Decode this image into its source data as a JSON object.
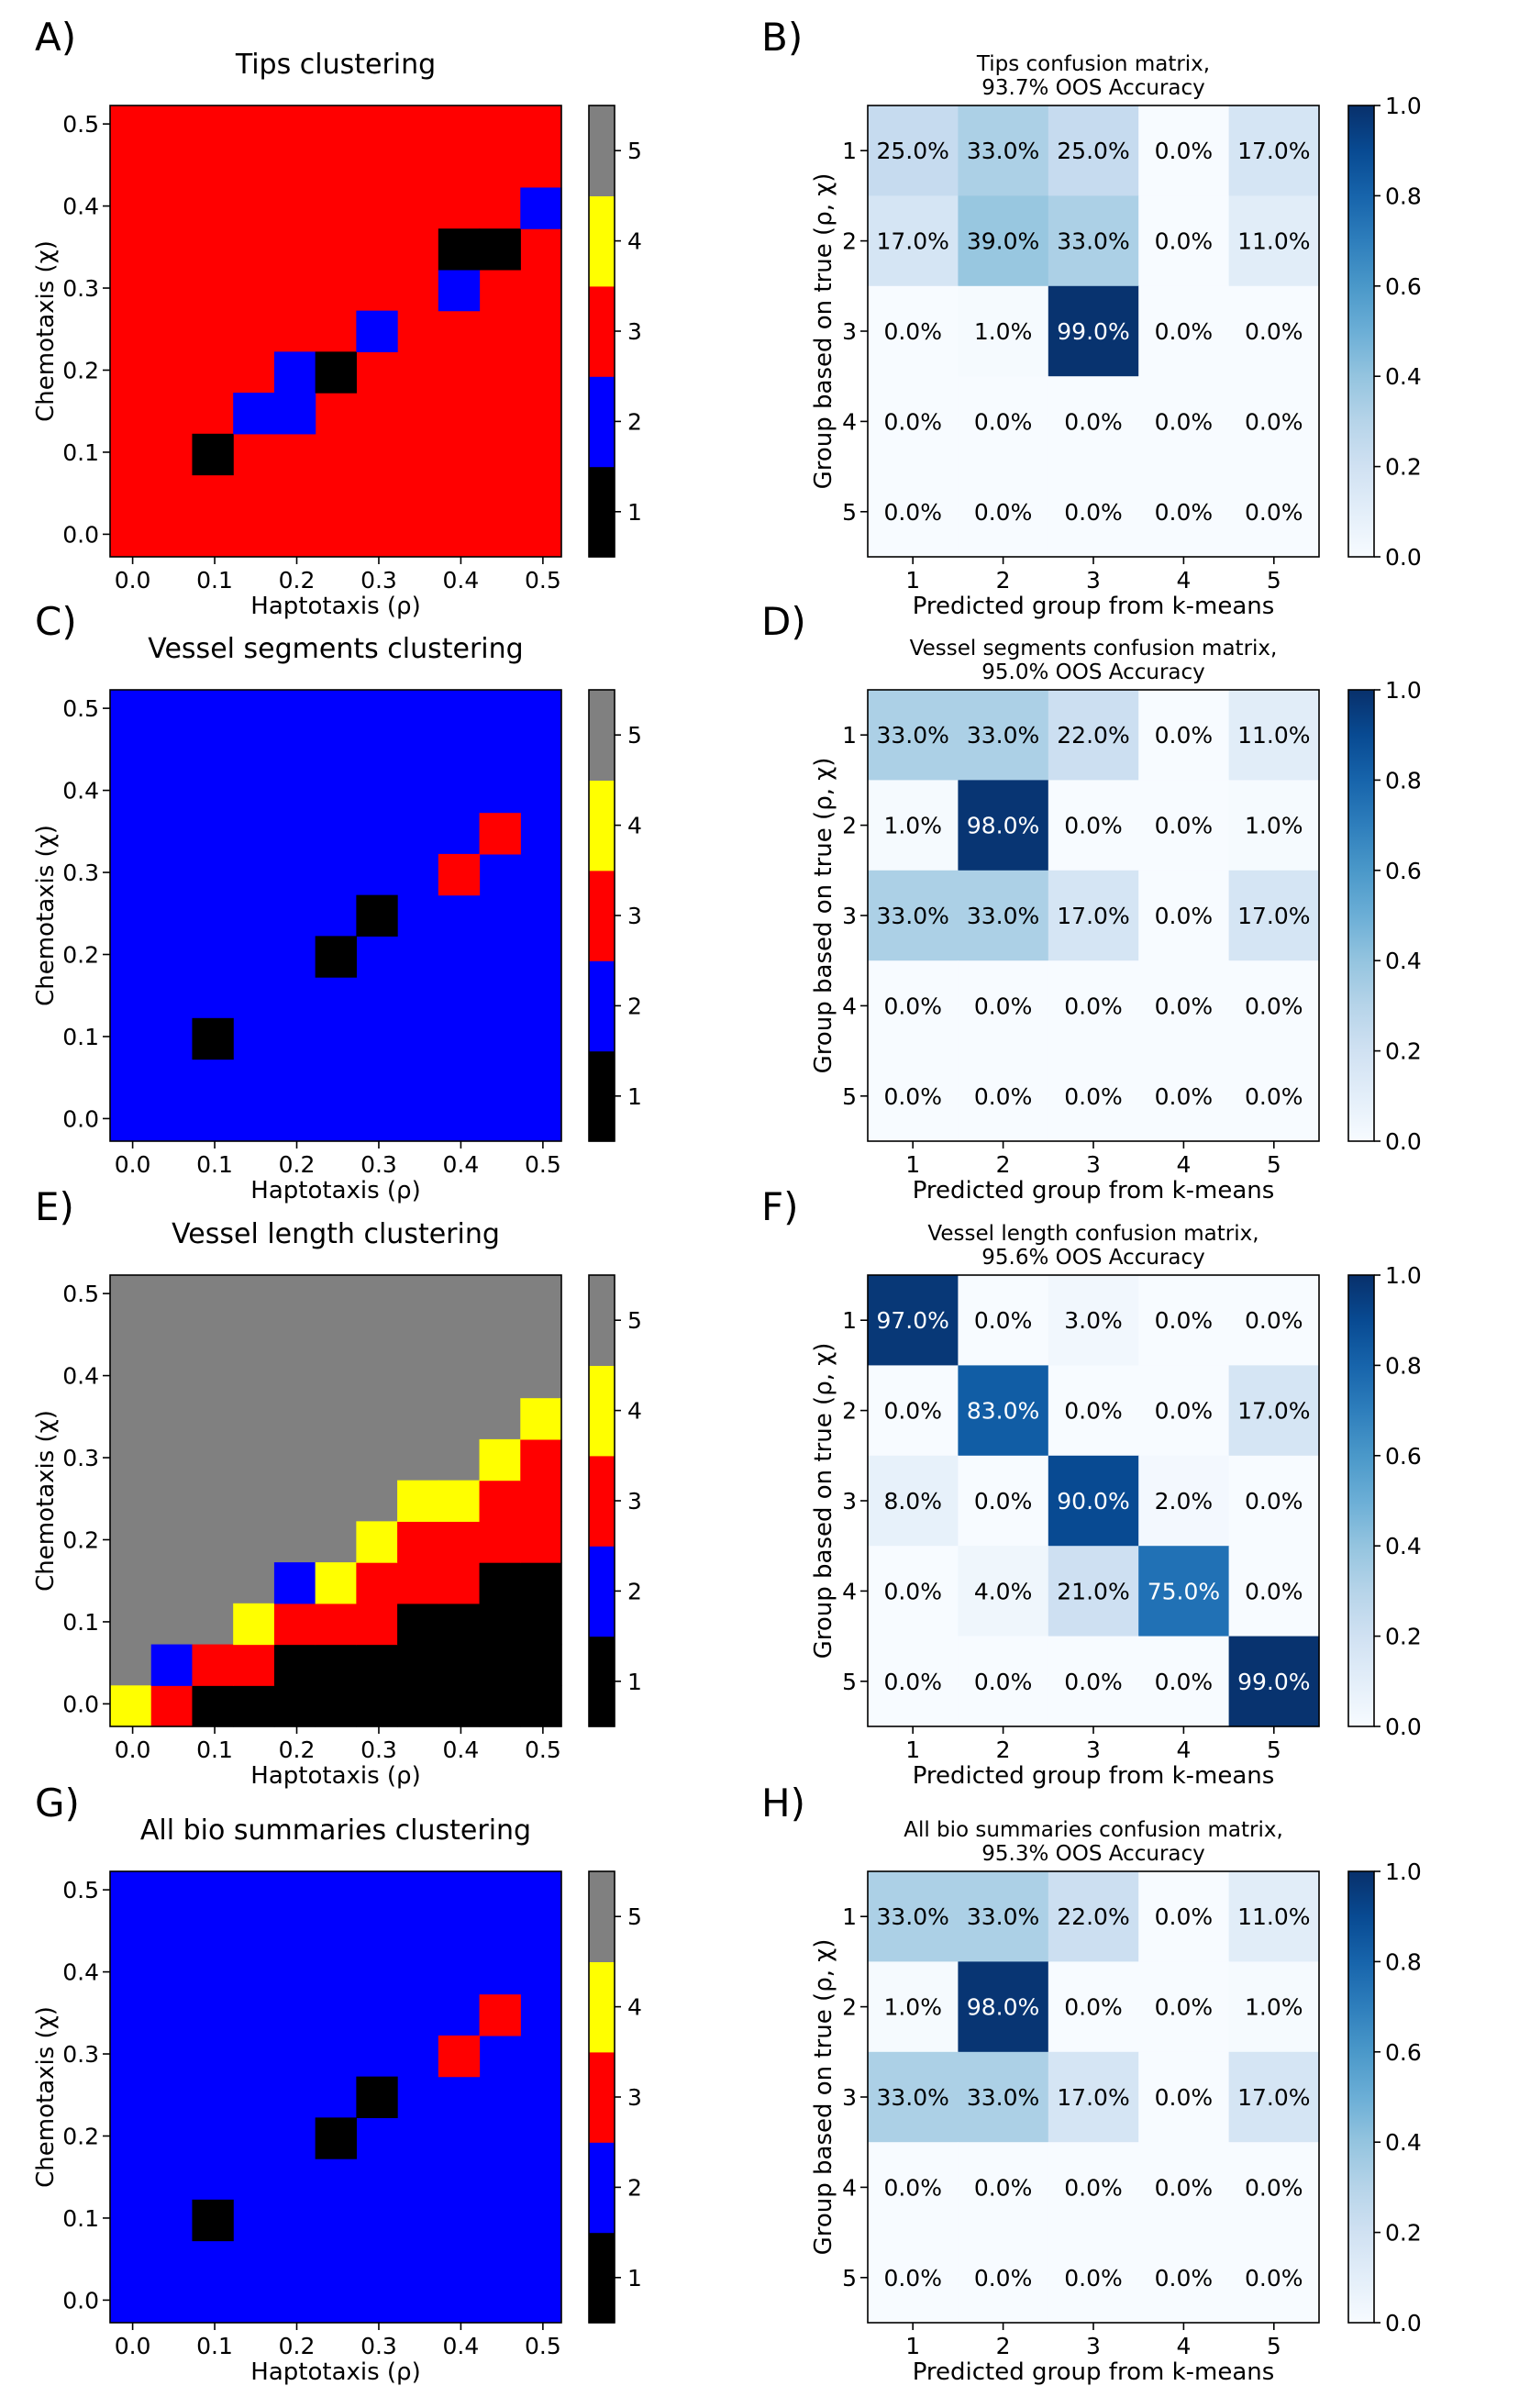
{
  "chart_data": [
    {
      "type": "heatmap",
      "panel": "A)",
      "title": "Tips clustering",
      "xlabel": "Haptotaxis (ρ)",
      "ylabel": "Chemotaxis (χ)",
      "xticks": [
        "0.0",
        "0.1",
        "0.2",
        "0.3",
        "0.4",
        "0.5"
      ],
      "yticks": [
        "0.0",
        "0.1",
        "0.2",
        "0.3",
        "0.4",
        "0.5"
      ],
      "xlim": [
        -0.0275,
        0.5225
      ],
      "ylim": [
        -0.0275,
        0.5225
      ],
      "grid_size": 11,
      "grid_step": 0.05,
      "background": 3,
      "cells": [
        [
          2,
          2,
          1
        ],
        [
          3,
          3,
          2
        ],
        [
          4,
          3,
          2
        ],
        [
          4,
          4,
          2
        ],
        [
          5,
          4,
          1
        ],
        [
          6,
          5,
          2
        ],
        [
          8,
          6,
          2
        ],
        [
          8,
          7,
          1
        ],
        [
          9,
          7,
          1
        ],
        [
          10,
          8,
          2
        ]
      ],
      "colorbar": {
        "ticks": [
          "1",
          "2",
          "3",
          "4",
          "5"
        ],
        "colors": [
          "#000000",
          "#0000ff",
          "#ff0000",
          "#ffff00",
          "#808080"
        ]
      }
    },
    {
      "type": "heatmap",
      "panel": "B)",
      "title": "Tips confusion matrix,",
      "subtitle": "93.7% OOS Accuracy",
      "xlabel": "Predicted group from k-means",
      "ylabel": "Group based on true (ρ, χ)",
      "categories": [
        "1",
        "2",
        "3",
        "4",
        "5"
      ],
      "values": [
        [
          0.25,
          0.33,
          0.25,
          0,
          0.17
        ],
        [
          0.17,
          0.39,
          0.33,
          0,
          0.11
        ],
        [
          0,
          0.01,
          0.99,
          0,
          0
        ],
        [
          0,
          0,
          0,
          0,
          0
        ],
        [
          0,
          0,
          0,
          0,
          0
        ]
      ],
      "labels": [
        [
          "25.0%",
          "33.0%",
          "25.0%",
          "0.0%",
          "17.0%"
        ],
        [
          "17.0%",
          "39.0%",
          "33.0%",
          "0.0%",
          "11.0%"
        ],
        [
          "0.0%",
          "1.0%",
          "99.0%",
          "0.0%",
          "0.0%"
        ],
        [
          "0.0%",
          "0.0%",
          "0.0%",
          "0.0%",
          "0.0%"
        ],
        [
          "0.0%",
          "0.0%",
          "0.0%",
          "0.0%",
          "0.0%"
        ]
      ],
      "colorbar": {
        "ticks": [
          "0.0",
          "0.2",
          "0.4",
          "0.6",
          "0.8",
          "1.0"
        ],
        "range": [
          0,
          1
        ],
        "cmap": "Blues"
      }
    },
    {
      "type": "heatmap",
      "panel": "C)",
      "title": "Vessel segments clustering",
      "xlabel": "Haptotaxis (ρ)",
      "ylabel": "Chemotaxis (χ)",
      "xticks": [
        "0.0",
        "0.1",
        "0.2",
        "0.3",
        "0.4",
        "0.5"
      ],
      "yticks": [
        "0.0",
        "0.1",
        "0.2",
        "0.3",
        "0.4",
        "0.5"
      ],
      "xlim": [
        -0.0275,
        0.5225
      ],
      "ylim": [
        -0.0275,
        0.5225
      ],
      "grid_size": 11,
      "grid_step": 0.05,
      "background": 2,
      "cells": [
        [
          2,
          2,
          1
        ],
        [
          5,
          4,
          1
        ],
        [
          6,
          5,
          1
        ],
        [
          8,
          6,
          3
        ],
        [
          9,
          7,
          3
        ]
      ],
      "colorbar": {
        "ticks": [
          "1",
          "2",
          "3",
          "4",
          "5"
        ],
        "colors": [
          "#000000",
          "#0000ff",
          "#ff0000",
          "#ffff00",
          "#808080"
        ]
      }
    },
    {
      "type": "heatmap",
      "panel": "D)",
      "title": "Vessel segments confusion matrix,",
      "subtitle": "95.0% OOS Accuracy",
      "xlabel": "Predicted group from k-means",
      "ylabel": "Group based on true (ρ, χ)",
      "categories": [
        "1",
        "2",
        "3",
        "4",
        "5"
      ],
      "values": [
        [
          0.33,
          0.33,
          0.22,
          0,
          0.11
        ],
        [
          0.01,
          0.98,
          0,
          0,
          0.01
        ],
        [
          0.33,
          0.33,
          0.17,
          0,
          0.17
        ],
        [
          0,
          0,
          0,
          0,
          0
        ],
        [
          0,
          0,
          0,
          0,
          0
        ]
      ],
      "labels": [
        [
          "33.0%",
          "33.0%",
          "22.0%",
          "0.0%",
          "11.0%"
        ],
        [
          "1.0%",
          "98.0%",
          "0.0%",
          "0.0%",
          "1.0%"
        ],
        [
          "33.0%",
          "33.0%",
          "17.0%",
          "0.0%",
          "17.0%"
        ],
        [
          "0.0%",
          "0.0%",
          "0.0%",
          "0.0%",
          "0.0%"
        ],
        [
          "0.0%",
          "0.0%",
          "0.0%",
          "0.0%",
          "0.0%"
        ]
      ],
      "colorbar": {
        "ticks": [
          "0.0",
          "0.2",
          "0.4",
          "0.6",
          "0.8",
          "1.0"
        ],
        "range": [
          0,
          1
        ],
        "cmap": "Blues"
      }
    },
    {
      "type": "heatmap",
      "panel": "E)",
      "title": "Vessel length clustering",
      "xlabel": "Haptotaxis (ρ)",
      "ylabel": "Chemotaxis (χ)",
      "xticks": [
        "0.0",
        "0.1",
        "0.2",
        "0.3",
        "0.4",
        "0.5"
      ],
      "yticks": [
        "0.0",
        "0.1",
        "0.2",
        "0.3",
        "0.4",
        "0.5"
      ],
      "xlim": [
        -0.0275,
        0.5225
      ],
      "ylim": [
        -0.0275,
        0.5225
      ],
      "grid_size": 11,
      "grid_step": 0.05,
      "background": 5,
      "cells": [
        [
          0,
          0,
          4
        ],
        [
          1,
          0,
          3
        ],
        [
          2,
          0,
          1
        ],
        [
          3,
          0,
          1
        ],
        [
          4,
          0,
          1
        ],
        [
          5,
          0,
          1
        ],
        [
          6,
          0,
          1
        ],
        [
          7,
          0,
          1
        ],
        [
          8,
          0,
          1
        ],
        [
          9,
          0,
          1
        ],
        [
          10,
          0,
          1
        ],
        [
          1,
          1,
          2
        ],
        [
          2,
          1,
          3
        ],
        [
          3,
          1,
          3
        ],
        [
          4,
          1,
          1
        ],
        [
          5,
          1,
          1
        ],
        [
          6,
          1,
          1
        ],
        [
          7,
          1,
          1
        ],
        [
          8,
          1,
          1
        ],
        [
          9,
          1,
          1
        ],
        [
          10,
          1,
          1
        ],
        [
          3,
          2,
          4
        ],
        [
          4,
          2,
          3
        ],
        [
          5,
          2,
          3
        ],
        [
          6,
          2,
          3
        ],
        [
          7,
          2,
          1
        ],
        [
          8,
          2,
          1
        ],
        [
          9,
          2,
          1
        ],
        [
          10,
          2,
          1
        ],
        [
          4,
          3,
          2
        ],
        [
          5,
          3,
          4
        ],
        [
          6,
          3,
          3
        ],
        [
          7,
          3,
          3
        ],
        [
          8,
          3,
          3
        ],
        [
          9,
          3,
          1
        ],
        [
          10,
          3,
          1
        ],
        [
          6,
          4,
          4
        ],
        [
          7,
          4,
          3
        ],
        [
          8,
          4,
          3
        ],
        [
          9,
          4,
          3
        ],
        [
          10,
          4,
          3
        ],
        [
          7,
          5,
          4
        ],
        [
          8,
          5,
          4
        ],
        [
          9,
          5,
          3
        ],
        [
          10,
          5,
          3
        ],
        [
          9,
          6,
          4
        ],
        [
          10,
          6,
          3
        ],
        [
          10,
          7,
          4
        ]
      ],
      "colorbar": {
        "ticks": [
          "1",
          "2",
          "3",
          "4",
          "5"
        ],
        "colors": [
          "#000000",
          "#0000ff",
          "#ff0000",
          "#ffff00",
          "#808080"
        ]
      }
    },
    {
      "type": "heatmap",
      "panel": "F)",
      "title": "Vessel length confusion matrix,",
      "subtitle": "95.6% OOS Accuracy",
      "xlabel": "Predicted group from k-means",
      "ylabel": "Group based on true (ρ, χ)",
      "categories": [
        "1",
        "2",
        "3",
        "4",
        "5"
      ],
      "values": [
        [
          0.97,
          0,
          0.03,
          0,
          0
        ],
        [
          0,
          0.83,
          0,
          0,
          0.17
        ],
        [
          0.08,
          0,
          0.9,
          0.02,
          0
        ],
        [
          0,
          0.04,
          0.21,
          0.75,
          0
        ],
        [
          0,
          0,
          0,
          0,
          0.99
        ]
      ],
      "labels": [
        [
          "97.0%",
          "0.0%",
          "3.0%",
          "0.0%",
          "0.0%"
        ],
        [
          "0.0%",
          "83.0%",
          "0.0%",
          "0.0%",
          "17.0%"
        ],
        [
          "8.0%",
          "0.0%",
          "90.0%",
          "2.0%",
          "0.0%"
        ],
        [
          "0.0%",
          "4.0%",
          "21.0%",
          "75.0%",
          "0.0%"
        ],
        [
          "0.0%",
          "0.0%",
          "0.0%",
          "0.0%",
          "99.0%"
        ]
      ],
      "colorbar": {
        "ticks": [
          "0.0",
          "0.2",
          "0.4",
          "0.6",
          "0.8",
          "1.0"
        ],
        "range": [
          0,
          1
        ],
        "cmap": "Blues"
      }
    },
    {
      "type": "heatmap",
      "panel": "G)",
      "title": "All bio summaries clustering",
      "xlabel": "Haptotaxis (ρ)",
      "ylabel": "Chemotaxis (χ)",
      "xticks": [
        "0.0",
        "0.1",
        "0.2",
        "0.3",
        "0.4",
        "0.5"
      ],
      "yticks": [
        "0.0",
        "0.1",
        "0.2",
        "0.3",
        "0.4",
        "0.5"
      ],
      "xlim": [
        -0.0275,
        0.5225
      ],
      "ylim": [
        -0.0275,
        0.5225
      ],
      "grid_size": 11,
      "grid_step": 0.05,
      "background": 2,
      "cells": [
        [
          2,
          2,
          1
        ],
        [
          5,
          4,
          1
        ],
        [
          6,
          5,
          1
        ],
        [
          8,
          6,
          3
        ],
        [
          9,
          7,
          3
        ]
      ],
      "colorbar": {
        "ticks": [
          "1",
          "2",
          "3",
          "4",
          "5"
        ],
        "colors": [
          "#000000",
          "#0000ff",
          "#ff0000",
          "#ffff00",
          "#808080"
        ]
      }
    },
    {
      "type": "heatmap",
      "panel": "H)",
      "title": "All bio summaries confusion matrix,",
      "subtitle": "95.3% OOS Accuracy",
      "xlabel": "Predicted group from k-means",
      "ylabel": "Group based on true (ρ, χ)",
      "categories": [
        "1",
        "2",
        "3",
        "4",
        "5"
      ],
      "values": [
        [
          0.33,
          0.33,
          0.22,
          0,
          0.11
        ],
        [
          0.01,
          0.98,
          0,
          0,
          0.01
        ],
        [
          0.33,
          0.33,
          0.17,
          0,
          0.17
        ],
        [
          0,
          0,
          0,
          0,
          0
        ],
        [
          0,
          0,
          0,
          0,
          0
        ]
      ],
      "labels": [
        [
          "33.0%",
          "33.0%",
          "22.0%",
          "0.0%",
          "11.0%"
        ],
        [
          "1.0%",
          "98.0%",
          "0.0%",
          "0.0%",
          "1.0%"
        ],
        [
          "33.0%",
          "33.0%",
          "17.0%",
          "0.0%",
          "17.0%"
        ],
        [
          "0.0%",
          "0.0%",
          "0.0%",
          "0.0%",
          "0.0%"
        ],
        [
          "0.0%",
          "0.0%",
          "0.0%",
          "0.0%",
          "0.0%"
        ]
      ],
      "colorbar": {
        "ticks": [
          "0.0",
          "0.2",
          "0.4",
          "0.6",
          "0.8",
          "1.0"
        ],
        "range": [
          0,
          1
        ],
        "cmap": "Blues"
      }
    }
  ]
}
